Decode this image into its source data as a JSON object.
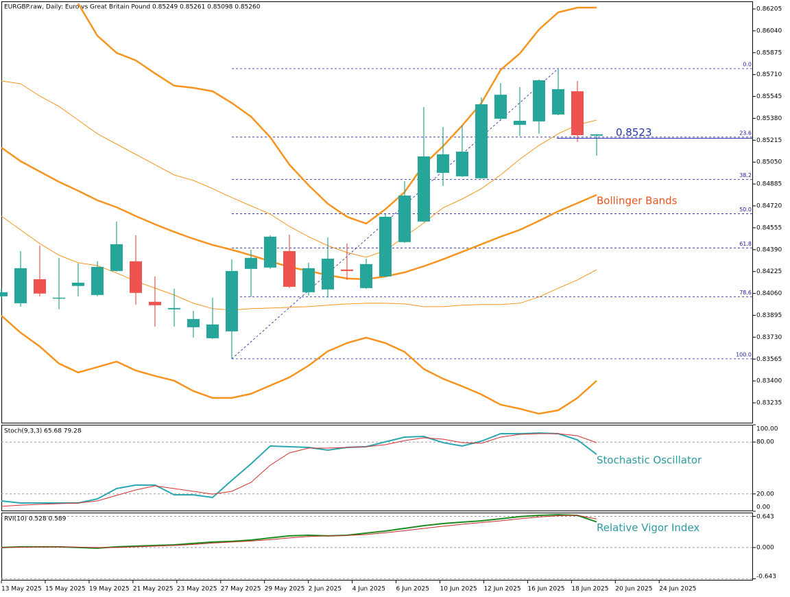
{
  "chart_data": [
    {
      "type": "candlestick",
      "title": "EURGBP.raw, Daily:  Euro vs Great Britain Pound  0.85249 0.85261 0.85098 0.85260",
      "up_color": "#26a69a",
      "down_color": "#ef5350",
      "open": [
        0.84038,
        0.83986,
        0.84167,
        0.84022,
        0.84116,
        0.84048,
        0.84229,
        0.84302,
        0.83997,
        0.8394,
        0.83805,
        0.83722,
        0.83774,
        0.84245,
        0.84255,
        0.84379,
        0.84069,
        0.8409,
        0.8424,
        0.841,
        0.84188,
        0.84447,
        0.84602,
        0.84969,
        0.84943,
        0.84928,
        0.85377,
        0.85331,
        0.85357,
        0.85409,
        0.85584,
        0.85249
      ],
      "high": [
        0.841,
        0.84379,
        0.84421,
        0.84328,
        0.84286,
        0.84302,
        0.84602,
        0.84498,
        0.84188,
        0.84095,
        0.83929,
        0.84028,
        0.84317,
        0.8439,
        0.84498,
        0.84503,
        0.84291,
        0.84483,
        0.84436,
        0.84322,
        0.84659,
        0.84907,
        0.85465,
        0.85315,
        0.85326,
        0.85538,
        0.85646,
        0.85615,
        0.85672,
        0.85755,
        0.85662,
        0.85261
      ],
      "low": [
        0.84022,
        0.8396,
        0.84038,
        0.8394,
        0.84038,
        0.84038,
        0.84224,
        0.83976,
        0.8381,
        0.8381,
        0.83728,
        0.83717,
        0.83567,
        0.84033,
        0.84245,
        0.841,
        0.84043,
        0.84028,
        0.84162,
        0.84095,
        0.84183,
        0.84441,
        0.84597,
        0.84871,
        0.84938,
        0.84925,
        0.85362,
        0.85248,
        0.85264,
        0.85403,
        0.85202,
        0.85098
      ],
      "close": [
        0.84069,
        0.8425,
        0.84059,
        0.84028,
        0.84141,
        0.8426,
        0.84431,
        0.84064,
        0.83971,
        0.8395,
        0.83867,
        0.83826,
        0.84229,
        0.84328,
        0.84488,
        0.8411,
        0.8425,
        0.84322,
        0.84229,
        0.84281,
        0.84638,
        0.84798,
        0.85093,
        0.85109,
        0.85129,
        0.85486,
        0.85558,
        0.85362,
        0.85667,
        0.856,
        0.85253,
        0.8526
      ],
      "bands": [
        {
          "color": "#f7931e",
          "width": 2.5,
          "values": [
            null,
            null,
            null,
            null,
            0.86246,
            0.86003,
            0.85874,
            0.85817,
            0.85719,
            0.85626,
            0.8561,
            0.85584,
            0.85496,
            0.85393,
            0.85238,
            0.85031,
            0.84876,
            0.84736,
            0.84638,
            0.84586,
            0.84695,
            0.84824,
            0.85031,
            0.8517,
            0.85326,
            0.85496,
            0.85745,
            0.85869,
            0.8605,
            0.86179,
            0.86215,
            0.86215
          ]
        },
        {
          "color": "#f7931e",
          "width": 2.5,
          "values": [
            0.8516,
            0.85057,
            0.84979,
            0.84901,
            0.84834,
            0.84762,
            0.8471,
            0.84643,
            0.84581,
            0.84524,
            0.84472,
            0.84426,
            0.84389,
            0.84348,
            0.84302,
            0.8426,
            0.84229,
            0.84198,
            0.84172,
            0.84167,
            0.84188,
            0.84219,
            0.84265,
            0.84317,
            0.84374,
            0.84431,
            0.84488,
            0.84539,
            0.84607,
            0.84679,
            0.84741,
            0.84803
          ]
        },
        {
          "color": "#f7931e",
          "width": 2.5,
          "values": [
            0.83893,
            0.83764,
            0.8366,
            0.83531,
            0.83464,
            0.83505,
            0.83546,
            0.83479,
            0.83438,
            0.83402,
            0.83324,
            0.83272,
            0.83272,
            0.83303,
            0.83365,
            0.83427,
            0.83515,
            0.83624,
            0.83686,
            0.83727,
            0.83686,
            0.83619,
            0.8349,
            0.83417,
            0.8336,
            0.83298,
            0.83221,
            0.8319,
            0.83153,
            0.83179,
            0.83272,
            0.83402
          ]
        },
        {
          "color": "#f7931e",
          "width": 1,
          "values": [
            0.85662,
            0.85641,
            0.85548,
            0.8547,
            0.85367,
            0.85264,
            0.85186,
            0.85108,
            0.85031,
            0.84953,
            0.84912,
            0.8485,
            0.84783,
            0.8472,
            0.84658,
            0.84565,
            0.84488,
            0.8442,
            0.84369,
            0.84333,
            0.84384,
            0.84488,
            0.84591,
            0.84705,
            0.84772,
            0.8485,
            0.84953,
            0.85072,
            0.85176,
            0.85264,
            0.85331,
            0.85367
          ]
        },
        {
          "color": "#f7931e",
          "width": 1,
          "values": [
            0.84643,
            0.84539,
            0.84436,
            0.84348,
            0.84291,
            0.8427,
            0.84214,
            0.84152,
            0.841,
            0.84048,
            0.83986,
            0.83945,
            0.83934,
            0.83945,
            0.8395,
            0.83955,
            0.8396,
            0.83971,
            0.83981,
            0.83986,
            0.83986,
            0.83981,
            0.8396,
            0.8396,
            0.83971,
            0.83976,
            0.83976,
            0.83986,
            0.84033,
            0.841,
            0.84162,
            0.84239
          ]
        }
      ],
      "annotation": {
        "text": "Bollinger Bands",
        "color": "#e8561f"
      },
      "fib": {
        "high": 0.85755,
        "low": 0.83567,
        "color": "#1a1aa0",
        "levels": [
          {
            "value": 0,
            "label": "0.0"
          },
          23.6,
          38.2,
          {
            "value": 50,
            "label": "50.0"
          },
          61.8,
          78.6,
          {
            "value": 100,
            "label": "100.0"
          }
        ]
      },
      "price_line": {
        "value": 0.8523,
        "color": "#2433b0"
      },
      "ylim": [
        0.8308,
        0.86262
      ],
      "yticks": [
        0.86205,
        {
          "value": 0.8604,
          "label": "0.86040"
        },
        0.85875,
        {
          "value": 0.8571,
          "label": "0.85710"
        },
        0.85545,
        {
          "value": 0.8538,
          "label": "0.85380"
        },
        0.85215,
        {
          "value": 0.8505,
          "label": "0.85050"
        },
        0.84885,
        {
          "value": 0.8472,
          "label": "0.84720"
        },
        0.84555,
        {
          "value": 0.8439,
          "label": "0.84390"
        },
        0.84225,
        {
          "value": 0.8406,
          "label": "0.84060"
        },
        0.83895,
        {
          "value": 0.8373,
          "label": "0.83730"
        },
        0.83565,
        {
          "value": 0.834,
          "label": "0.83400"
        },
        0.83235
      ]
    },
    {
      "type": "line",
      "title": "Stoch(9,3,3) 65.68 79.28",
      "series": [
        {
          "color": "#2aa7b0",
          "width": 2,
          "values": [
            11.9,
            9.5,
            9.5,
            9.5,
            9.5,
            14.3,
            26.2,
            30.2,
            30.2,
            19.0,
            19.0,
            15.9,
            35.7,
            54.8,
            75.4,
            74.6,
            73.8,
            70.6,
            73.8,
            74.6,
            80.2,
            85.7,
            86.5,
            79.4,
            75.4,
            81.0,
            89.7,
            89.7,
            90.5,
            89.7,
            82.5,
            65.68
          ]
        },
        {
          "color": "#d32f2f",
          "width": 1,
          "values": [
            5.6,
            7.1,
            7.9,
            8.7,
            9.5,
            11.9,
            18.3,
            24.6,
            29.4,
            26.2,
            23.0,
            19.8,
            23.0,
            33.3,
            53.2,
            67.5,
            73.0,
            73.0,
            73.8,
            74.6,
            77.0,
            81.7,
            84.9,
            83.3,
            79.4,
            78.6,
            85.7,
            88.9,
            89.7,
            89.7,
            87.3,
            79.28
          ]
        }
      ],
      "annotation": {
        "text": "Stochastic Oscillator",
        "color": "#2a9aa3"
      },
      "ylim": [
        0,
        100
      ],
      "yticks": [
        {
          "value": 100,
          "label": "100.00"
        },
        {
          "value": 80,
          "label": "80.00"
        },
        {
          "value": 20,
          "label": "20.00"
        },
        {
          "value": 0,
          "label": "0.00"
        }
      ]
    },
    {
      "type": "line",
      "title": "RVI(10) 0.528 0.589",
      "series": [
        {
          "color": "#1e8a1e",
          "width": 2,
          "values": [
            0,
            0.014,
            0.014,
            0.014,
            0,
            -0.014,
            0.014,
            0.028,
            0.042,
            0.056,
            0.085,
            0.113,
            0.127,
            0.155,
            0.198,
            0.24,
            0.254,
            0.24,
            0.254,
            0.297,
            0.339,
            0.395,
            0.452,
            0.494,
            0.523,
            0.551,
            0.593,
            0.636,
            0.664,
            0.678,
            0.664,
            0.528
          ]
        },
        {
          "color": "#c62828",
          "width": 1,
          "values": [
            0,
            0.007,
            0.014,
            0.014,
            0.007,
            0,
            0,
            0.014,
            0.028,
            0.042,
            0.064,
            0.092,
            0.113,
            0.134,
            0.163,
            0.198,
            0.226,
            0.24,
            0.247,
            0.268,
            0.304,
            0.346,
            0.395,
            0.438,
            0.48,
            0.515,
            0.551,
            0.593,
            0.629,
            0.657,
            0.664,
            0.589
          ]
        }
      ],
      "annotation": {
        "text": "Relative Vigor Index",
        "color": "#2a9aa3"
      },
      "ylim": [
        -0.68,
        0.72
      ],
      "yticks": [
        0.643,
        {
          "value": 0,
          "label": "0.000"
        },
        -0.643
      ],
      "x_labels": [
        "13 May 2025",
        "15 May 2025",
        "19 May 2025",
        "21 May 2025",
        "23 May 2025",
        "27 May 2025",
        "29 May 2025",
        "2 Jun 2025",
        "4 Jun 2025",
        "6 Jun 2025",
        "10 Jun 2025",
        "12 Jun 2025",
        "16 Jun 2025",
        "18 Jun 2025",
        "20 Jun 2025",
        "24 Jun 2025"
      ]
    }
  ]
}
